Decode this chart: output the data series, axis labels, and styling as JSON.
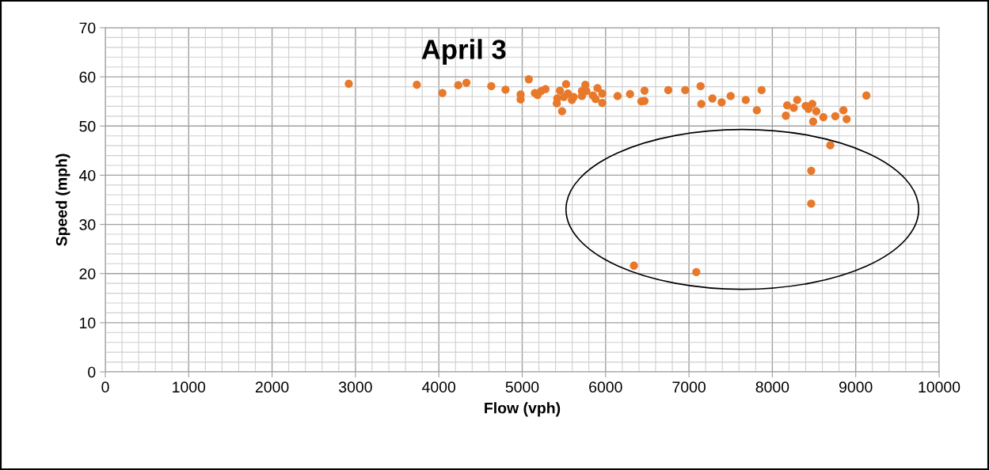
{
  "chart_data": {
    "type": "scatter",
    "title": "April 3",
    "xlabel": "Flow (vph)",
    "ylabel": "Speed (mph)",
    "x": [
      2920,
      3736,
      4043,
      4233,
      4331,
      4629,
      4800,
      4981,
      4981,
      5079,
      5152,
      5184,
      5225,
      5279,
      5421,
      5415,
      5453,
      5478,
      5526,
      5548,
      5500,
      5596,
      5618,
      5716,
      5716,
      5757,
      5770,
      5849,
      5880,
      5903,
      5960,
      5960,
      6144,
      6293,
      6467,
      6429,
      6467,
      6752,
      6955,
      7139,
      7148,
      7281,
      7392,
      7500,
      7681,
      7814,
      7871,
      8178,
      8162,
      8257,
      8298,
      8400,
      8479,
      8432,
      8527,
      8489,
      8612,
      8755,
      8853,
      8891,
      9128,
      8695,
      8466,
      8466,
      6340,
      7088
    ],
    "values": [
      58.6,
      58.4,
      56.7,
      58.3,
      58.8,
      58.1,
      57.4,
      56.4,
      55.4,
      59.5,
      56.7,
      56.3,
      57.1,
      57.5,
      55.6,
      54.6,
      57.2,
      53.0,
      58.5,
      56.6,
      55.9,
      55.3,
      55.9,
      57.1,
      56.1,
      58.4,
      57.1,
      56.2,
      55.5,
      57.7,
      56.6,
      54.7,
      56.1,
      56.5,
      57.2,
      55.0,
      55.1,
      57.3,
      57.3,
      58.1,
      54.5,
      55.6,
      54.8,
      56.1,
      55.3,
      53.2,
      57.3,
      54.2,
      52.1,
      53.7,
      55.3,
      54.1,
      54.5,
      53.5,
      53.0,
      50.9,
      51.8,
      52.0,
      53.2,
      51.4,
      56.2,
      46.1,
      40.9,
      34.2,
      21.6,
      20.3
    ],
    "color": "#e8792a",
    "marker": "circle",
    "xlim": [
      0,
      10000
    ],
    "ylim": [
      0,
      70
    ],
    "xticks": [
      0,
      1000,
      2000,
      3000,
      4000,
      5000,
      6000,
      7000,
      8000,
      9000,
      10000
    ],
    "yticks": [
      0,
      10,
      20,
      30,
      40,
      50,
      60,
      70
    ],
    "grid": true
  }
}
